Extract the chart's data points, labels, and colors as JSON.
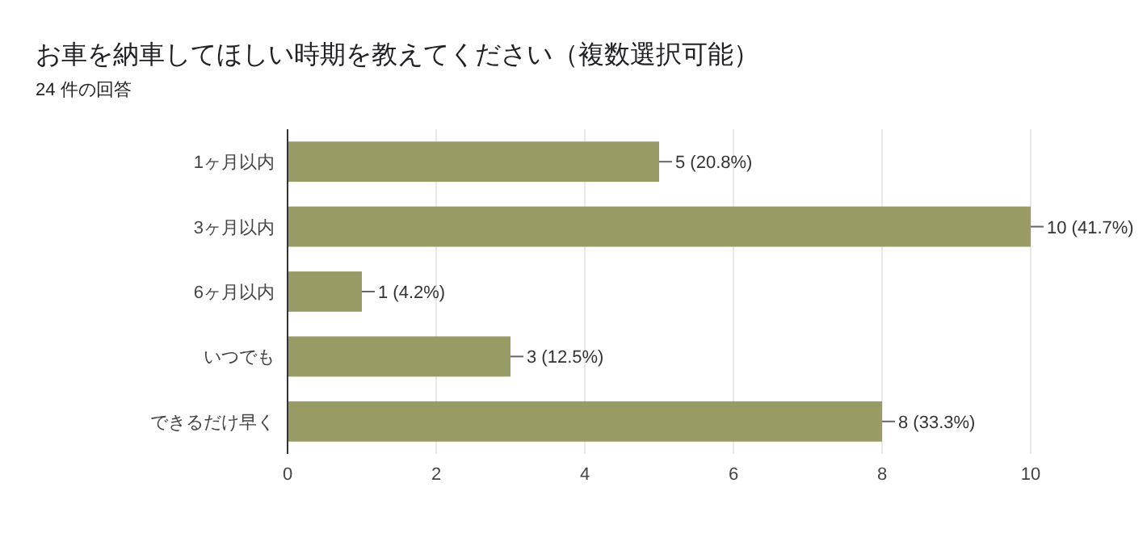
{
  "chart_data": {
    "type": "bar",
    "orientation": "horizontal",
    "title": "お車を納車してほしい時期を教えてください（複数選択可能）",
    "subtitle": "24 件の回答",
    "categories": [
      "1ヶ月以内",
      "3ヶ月以内",
      "6ヶ月以内",
      "いつでも",
      "できるだけ早く"
    ],
    "values": [
      5,
      10,
      1,
      3,
      8
    ],
    "color": "#989c64",
    "value_labels": [
      "5 (20.8%)",
      "10 (41.7%)",
      "1 (4.2%)",
      "3 (12.5%)",
      "8 (33.3%)"
    ],
    "xlim": [
      0,
      10
    ],
    "xticks": [
      0,
      2,
      4,
      6,
      8,
      10
    ],
    "grid": "x"
  }
}
